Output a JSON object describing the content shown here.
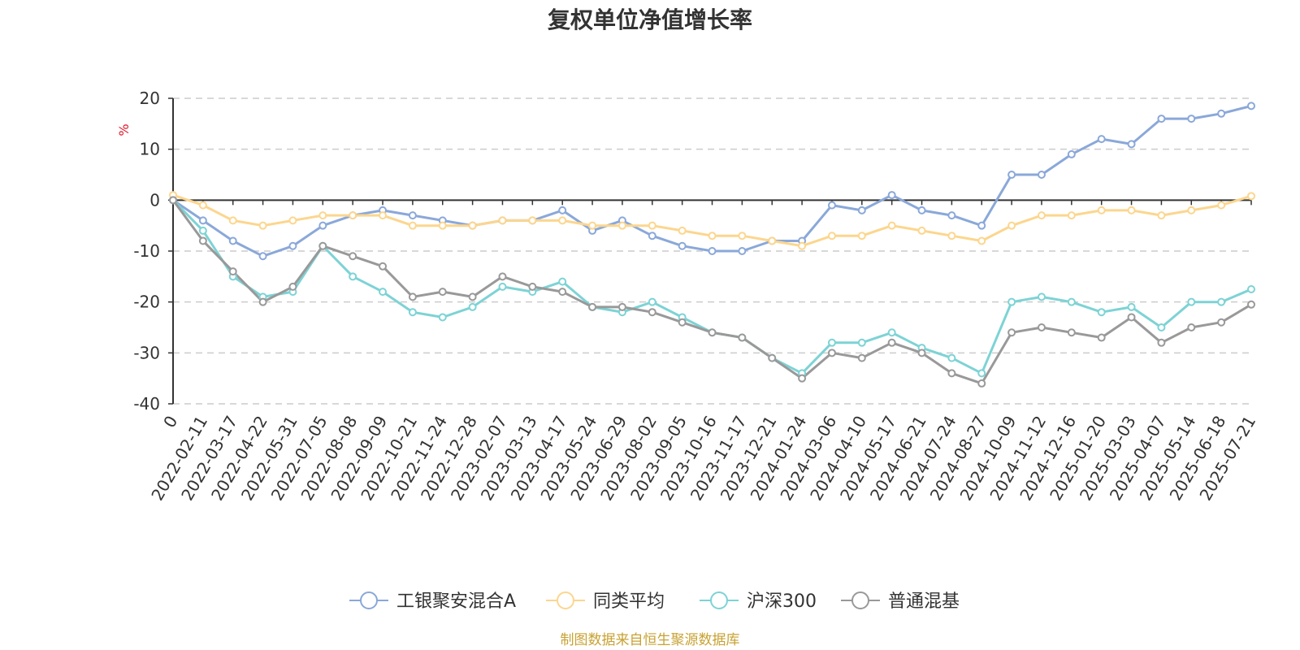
{
  "chart_data": {
    "type": "line",
    "title": "复权单位净值增长率",
    "ylabel": "%",
    "ylim": [
      -40,
      20
    ],
    "yticks": [
      "20",
      "10",
      "0",
      "-10",
      "-20",
      "-30",
      "-40"
    ],
    "x": [
      "0",
      "2022-02-11",
      "2022-03-17",
      "2022-04-22",
      "2022-05-31",
      "2022-07-05",
      "2022-08-08",
      "2022-09-09",
      "2022-10-21",
      "2022-11-24",
      "2022-12-28",
      "2023-02-07",
      "2023-03-13",
      "2023-04-17",
      "2023-05-24",
      "2023-06-29",
      "2023-08-02",
      "2023-09-05",
      "2023-10-16",
      "2023-11-17",
      "2023-12-21",
      "2024-01-24",
      "2024-03-06",
      "2024-04-10",
      "2024-05-17",
      "2024-06-21",
      "2024-07-24",
      "2024-08-27",
      "2024-10-09",
      "2024-11-12",
      "2024-12-16",
      "2025-01-20",
      "2025-03-03",
      "2025-04-07",
      "2025-05-14",
      "2025-06-18",
      "2025-07-21"
    ],
    "grid": "horizontal dashed",
    "legend_position": "bottom",
    "series": [
      {
        "name": "工银聚安混合A",
        "color": "#8aa8d9",
        "values": [
          0,
          -4,
          -8,
          -11,
          -9,
          -5,
          -3,
          -2,
          -3,
          -4,
          -5,
          -4,
          -4,
          -2,
          -6,
          -4,
          -7,
          -9,
          -10,
          -10,
          -8,
          -8,
          -1,
          -2,
          1,
          -2,
          -3,
          -5,
          5,
          5,
          9,
          12,
          11,
          16,
          16,
          17,
          18.5
        ]
      },
      {
        "name": "同类平均",
        "color": "#fcd68e",
        "values": [
          1,
          -1,
          -4,
          -5,
          -4,
          -3,
          -3,
          -3,
          -5,
          -5,
          -5,
          -4,
          -4,
          -4,
          -5,
          -5,
          -5,
          -6,
          -7,
          -7,
          -8,
          -9,
          -7,
          -7,
          -5,
          -6,
          -7,
          -8,
          -5,
          -3,
          -3,
          -2,
          -2,
          -3,
          -2,
          -1,
          0.8
        ]
      },
      {
        "name": "沪深300",
        "color": "#7dd3d5",
        "values": [
          0,
          -6,
          -15,
          -19,
          -18,
          -9,
          -15,
          -18,
          -22,
          -23,
          -21,
          -17,
          -18,
          -16,
          -21,
          -22,
          -20,
          -23,
          -26,
          -27,
          -31,
          -34,
          -28,
          -28,
          -26,
          -29,
          -31,
          -34,
          -20,
          -19,
          -20,
          -22,
          -21,
          -25,
          -20,
          -20,
          -17.5
        ]
      },
      {
        "name": "普通混基",
        "color": "#999999",
        "values": [
          0,
          -8,
          -14,
          -20,
          -17,
          -9,
          -11,
          -13,
          -19,
          -18,
          -19,
          -15,
          -17,
          -18,
          -21,
          -21,
          -22,
          -24,
          -26,
          -27,
          -31,
          -35,
          -30,
          -31,
          -28,
          -30,
          -34,
          -36,
          -26,
          -25,
          -26,
          -27,
          -23,
          -28,
          -25,
          -24,
          -20.5
        ]
      }
    ]
  },
  "source_text": "制图数据来自恒生聚源数据库"
}
